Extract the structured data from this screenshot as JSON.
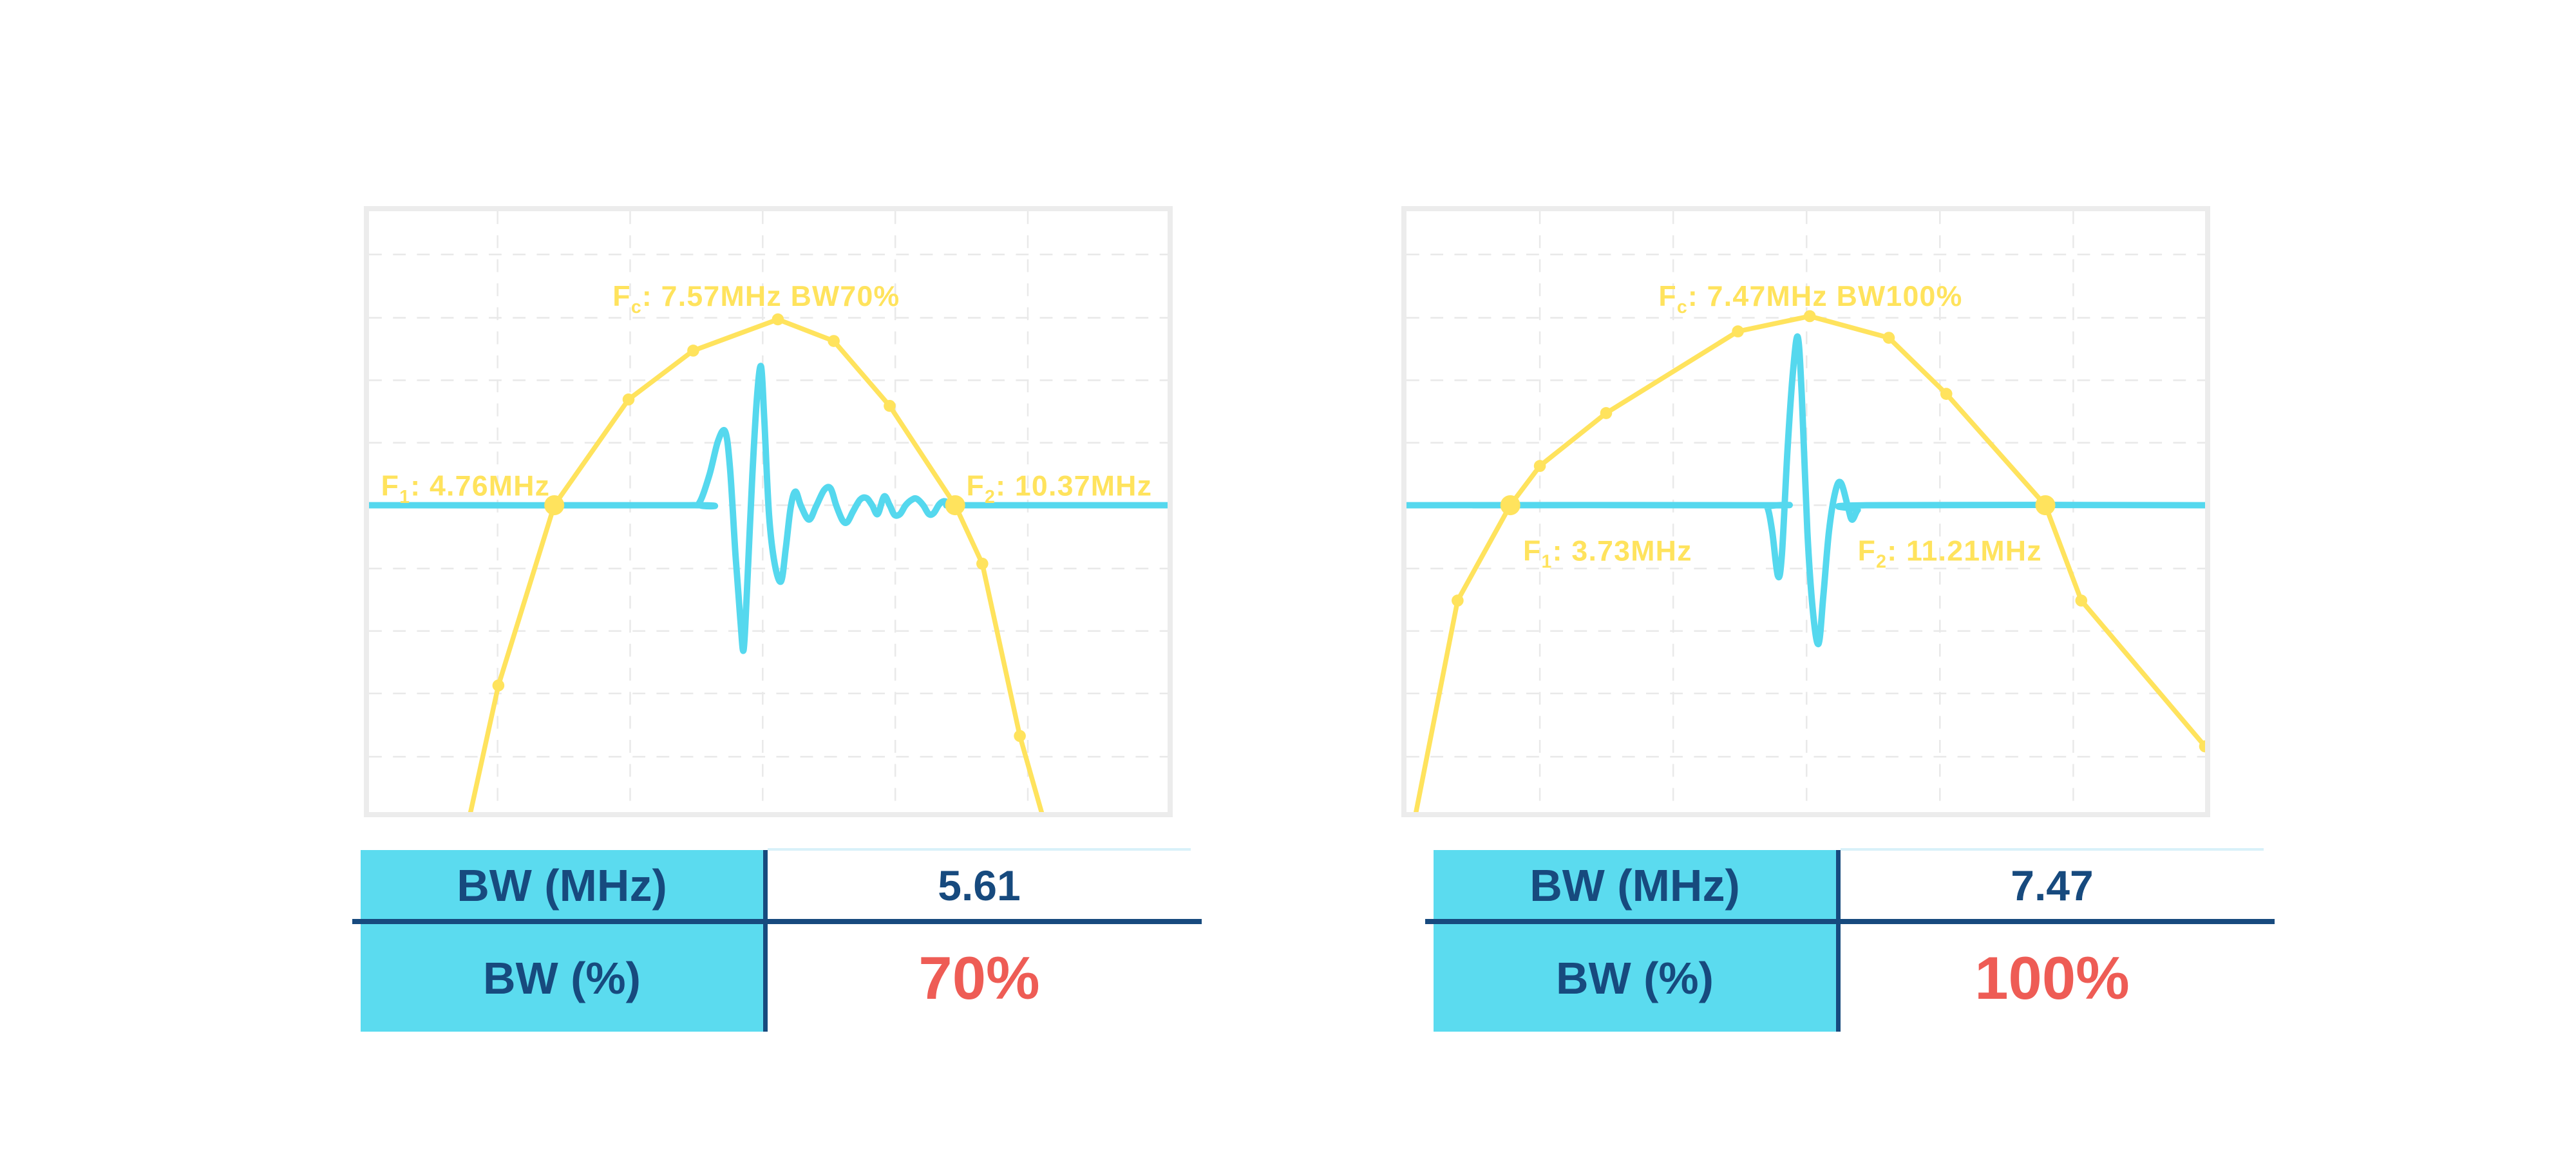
{
  "colors": {
    "yellow": "#FFE35D",
    "cyan": "#55D8EE",
    "navy": "#174A7E",
    "red": "#EE5C55",
    "grid": "#E9E9E9",
    "panel_border": "#ECECEC",
    "table_fill": "#5BDBEF",
    "value_topline": "#D8F1F9"
  },
  "chart_data": [
    {
      "type": "line",
      "title": "",
      "description": "Ultrasound pulse time-trace (cyan) overlaid on its piecewise-linear frequency spectrum (yellow) with markers; horizontal cyan line marks the half-maximum level crossing the spectrum at F1 and F2. Axes are unlabeled (no ticks shown).",
      "values": {
        "fc_mhz": 7.57,
        "f1_mhz": 4.76,
        "f2_mhz": 10.37,
        "bw_mhz": 5.61,
        "bw_pct": 70
      },
      "labels": {
        "fc": {
          "p": "F",
          "s": "c",
          "r": ": 7.57MHz BW70%"
        },
        "f1": {
          "p": "F",
          "s": "1",
          "r": ": 4.76MHz"
        },
        "f2": {
          "p": "F",
          "s": "2",
          "r": ": 10.37MHz"
        }
      },
      "axes": {
        "x": "unlabeled",
        "y": "unlabeled",
        "grid": "dashed"
      },
      "grid": {
        "vx": [
          161,
          327,
          493,
          659,
          825
        ],
        "hy": [
          54,
          133,
          211,
          289,
          367,
          446,
          524,
          602,
          681
        ]
      },
      "baseline_y": 367,
      "units_note": "normalized plot coords: x 0-1000, y 0-750 (y down); no numeric axis scale is shown in the figure",
      "series": [
        {
          "name": "spectrum",
          "color_key": "yellow",
          "points": [
            [
              125,
              760
            ],
            [
              162,
              592
            ],
            [
              232,
              367
            ],
            [
              325,
              235
            ],
            [
              406,
              174
            ],
            [
              512,
              135
            ],
            [
              582,
              162
            ],
            [
              652,
              243
            ],
            [
              734,
              367
            ],
            [
              768,
              440
            ],
            [
              815,
              655
            ],
            [
              845,
              760
            ]
          ],
          "marker_indices": [
            1,
            2,
            3,
            4,
            5,
            6,
            7,
            8,
            9,
            10
          ],
          "big_marker_indices": [
            2,
            8
          ]
        },
        {
          "name": "pulse-and-halfmax-line",
          "color_key": "cyan",
          "smooth": true,
          "points": [
            [
              0,
              367
            ],
            [
              400,
              367
            ],
            [
              413,
              365
            ],
            [
              426,
              330
            ],
            [
              437,
              287
            ],
            [
              446,
              275
            ],
            [
              452,
              320
            ],
            [
              459,
              430
            ],
            [
              465,
              510
            ],
            [
              469,
              548
            ],
            [
              473,
              480
            ],
            [
              480,
              330
            ],
            [
              486,
              230
            ],
            [
              491,
              194
            ],
            [
              495,
              260
            ],
            [
              501,
              380
            ],
            [
              508,
              440
            ],
            [
              516,
              462
            ],
            [
              522,
              420
            ],
            [
              528,
              370
            ],
            [
              534,
              350
            ],
            [
              541,
              368
            ],
            [
              551,
              385
            ],
            [
              560,
              368
            ],
            [
              570,
              348
            ],
            [
              578,
              346
            ],
            [
              585,
              367
            ],
            [
              593,
              386
            ],
            [
              599,
              388
            ],
            [
              606,
              375
            ],
            [
              615,
              360
            ],
            [
              623,
              358
            ],
            [
              630,
              367
            ],
            [
              637,
              378
            ],
            [
              645,
              356
            ],
            [
              652,
              367
            ],
            [
              658,
              379
            ],
            [
              665,
              378
            ],
            [
              672,
              367
            ],
            [
              680,
              360
            ],
            [
              686,
              359
            ],
            [
              694,
              367
            ],
            [
              701,
              378
            ],
            [
              707,
              377
            ],
            [
              714,
              366
            ],
            [
              720,
              362
            ],
            [
              726,
              364
            ],
            [
              734,
              367
            ],
            [
              745,
              367
            ],
            [
              1000,
              367
            ]
          ]
        }
      ]
    },
    {
      "type": "line",
      "title": "",
      "description": "Shorter broadband pulse (cyan) overlaid on a wider piecewise-linear frequency spectrum (yellow); cyan horizontal half-maximum line crosses the spectrum at F1 and F2. Axes are unlabeled (no ticks shown).",
      "values": {
        "fc_mhz": 7.47,
        "f1_mhz": 3.73,
        "f2_mhz": 11.21,
        "bw_mhz": 7.47,
        "bw_pct": 100
      },
      "labels": {
        "fc": {
          "p": "F",
          "s": "c",
          "r": ": 7.47MHz BW100%"
        },
        "f1": {
          "p": "F",
          "s": "1",
          "r": ": 3.73MHz"
        },
        "f2": {
          "p": "F",
          "s": "2",
          "r": ": 11.21MHz"
        }
      },
      "axes": {
        "x": "unlabeled",
        "y": "unlabeled",
        "grid": "dashed"
      },
      "grid": {
        "vx": [
          167,
          334,
          501,
          668,
          835
        ],
        "hy": [
          54,
          133,
          211,
          289,
          367,
          446,
          524,
          602,
          681
        ]
      },
      "baseline_y": 367,
      "units_note": "normalized plot coords: x 0-1000, y 0-750 (y down); no numeric axis scale is shown in the figure",
      "series": [
        {
          "name": "spectrum",
          "color_key": "yellow",
          "points": [
            [
              10,
              760
            ],
            [
              64,
              486
            ],
            [
              130,
              367
            ],
            [
              167,
              318
            ],
            [
              250,
              252
            ],
            [
              415,
              150
            ],
            [
              505,
              131
            ],
            [
              604,
              158
            ],
            [
              676,
              228
            ],
            [
              800,
              367
            ],
            [
              845,
              486
            ],
            [
              1000,
              668
            ]
          ],
          "marker_indices": [
            1,
            2,
            3,
            4,
            5,
            6,
            7,
            8,
            9,
            10,
            11
          ],
          "big_marker_indices": [
            2,
            9
          ]
        },
        {
          "name": "pulse-and-halfmax-line",
          "color_key": "cyan",
          "smooth": true,
          "points": [
            [
              0,
              367
            ],
            [
              445,
              367
            ],
            [
              452,
              370
            ],
            [
              458,
              400
            ],
            [
              465,
              455
            ],
            [
              470,
              430
            ],
            [
              477,
              300
            ],
            [
              484,
              200
            ],
            [
              490,
              157
            ],
            [
              495,
              230
            ],
            [
              502,
              400
            ],
            [
              509,
              500
            ],
            [
              516,
              540
            ],
            [
              522,
              480
            ],
            [
              529,
              400
            ],
            [
              537,
              350
            ],
            [
              544,
              339
            ],
            [
              553,
              370
            ],
            [
              558,
              385
            ],
            [
              565,
              373
            ],
            [
              575,
              367
            ],
            [
              1000,
              367
            ]
          ]
        }
      ]
    }
  ],
  "tables": [
    {
      "rows": [
        {
          "label": "BW (MHz)",
          "value": "5.61"
        },
        {
          "label": "BW (%)",
          "value": "70%"
        }
      ]
    },
    {
      "rows": [
        {
          "label": "BW (MHz)",
          "value": "7.47"
        },
        {
          "label": "BW (%)",
          "value": "100%"
        }
      ]
    }
  ]
}
